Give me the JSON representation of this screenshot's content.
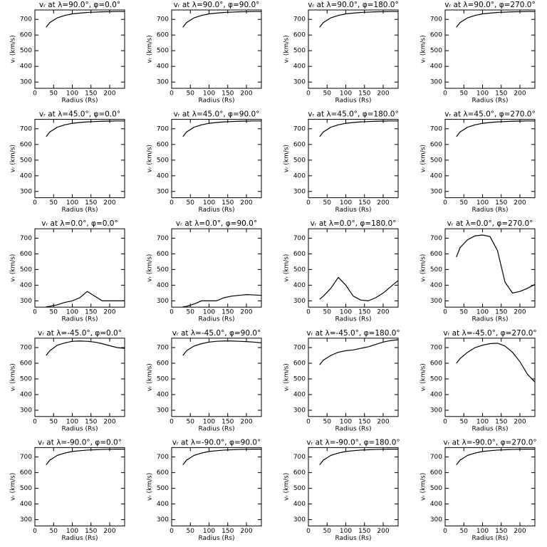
{
  "chart_data": [
    {
      "type": "line",
      "title": "vᵣ at λ=90.0°, φ=0.0°",
      "xlabel": "Radius (Rs)",
      "ylabel": "vᵣ (km/s)",
      "x": [
        30,
        40,
        60,
        80,
        100,
        120,
        140,
        160,
        180,
        200,
        220,
        240
      ],
      "values": [
        650,
        680,
        710,
        725,
        735,
        740,
        744,
        746,
        748,
        749,
        750,
        750
      ],
      "xlim": [
        0,
        240
      ],
      "ylim": [
        260,
        760
      ],
      "xticks": [
        0,
        50,
        100,
        150,
        200
      ],
      "yticks": [
        300,
        400,
        500,
        600,
        700
      ],
      "color": "#000000"
    },
    {
      "type": "line",
      "title": "vᵣ at λ=90.0°, φ=90.0°",
      "xlabel": "Radius (Rs)",
      "ylabel": "vᵣ (km/s)",
      "x": [
        30,
        40,
        60,
        80,
        100,
        120,
        140,
        160,
        180,
        200,
        220,
        240
      ],
      "values": [
        650,
        680,
        710,
        725,
        735,
        740,
        744,
        746,
        748,
        749,
        750,
        750
      ],
      "xlim": [
        0,
        240
      ],
      "ylim": [
        260,
        760
      ],
      "xticks": [
        0,
        50,
        100,
        150,
        200
      ],
      "yticks": [
        300,
        400,
        500,
        600,
        700
      ],
      "color": "#000000"
    },
    {
      "type": "line",
      "title": "vᵣ at λ=90.0°, φ=180.0°",
      "xlabel": "Radius (Rs)",
      "ylabel": "vᵣ (km/s)",
      "x": [
        30,
        40,
        60,
        80,
        100,
        120,
        140,
        160,
        180,
        200,
        220,
        240
      ],
      "values": [
        650,
        680,
        710,
        725,
        735,
        740,
        744,
        746,
        748,
        749,
        750,
        750
      ],
      "xlim": [
        0,
        240
      ],
      "ylim": [
        260,
        760
      ],
      "xticks": [
        0,
        50,
        100,
        150,
        200
      ],
      "yticks": [
        300,
        400,
        500,
        600,
        700
      ],
      "color": "#000000"
    },
    {
      "type": "line",
      "title": "vᵣ at λ=90.0°, φ=270.0°",
      "xlabel": "Radius (Rs)",
      "ylabel": "vᵣ (km/s)",
      "x": [
        30,
        40,
        60,
        80,
        100,
        120,
        140,
        160,
        180,
        200,
        220,
        240
      ],
      "values": [
        650,
        680,
        710,
        725,
        735,
        740,
        744,
        746,
        748,
        749,
        750,
        750
      ],
      "xlim": [
        0,
        240
      ],
      "ylim": [
        260,
        760
      ],
      "xticks": [
        0,
        50,
        100,
        150,
        200
      ],
      "yticks": [
        300,
        400,
        500,
        600,
        700
      ],
      "color": "#000000"
    },
    {
      "type": "line",
      "title": "vᵣ at λ=45.0°, φ=0.0°",
      "xlabel": "Radius (Rs)",
      "ylabel": "vᵣ (km/s)",
      "x": [
        30,
        40,
        60,
        80,
        100,
        120,
        140,
        160,
        180,
        200,
        220,
        240
      ],
      "values": [
        650,
        680,
        710,
        725,
        735,
        740,
        744,
        746,
        748,
        749,
        750,
        750
      ],
      "xlim": [
        0,
        240
      ],
      "ylim": [
        260,
        760
      ],
      "xticks": [
        0,
        50,
        100,
        150,
        200
      ],
      "yticks": [
        300,
        400,
        500,
        600,
        700
      ],
      "color": "#000000"
    },
    {
      "type": "line",
      "title": "vᵣ at λ=45.0°, φ=90.0°",
      "xlabel": "Radius (Rs)",
      "ylabel": "vᵣ (km/s)",
      "x": [
        30,
        40,
        60,
        80,
        100,
        120,
        140,
        160,
        180,
        200,
        220,
        240
      ],
      "values": [
        650,
        680,
        710,
        725,
        735,
        740,
        744,
        746,
        748,
        749,
        750,
        750
      ],
      "xlim": [
        0,
        240
      ],
      "ylim": [
        260,
        760
      ],
      "xticks": [
        0,
        50,
        100,
        150,
        200
      ],
      "yticks": [
        300,
        400,
        500,
        600,
        700
      ],
      "color": "#000000"
    },
    {
      "type": "line",
      "title": "vᵣ at λ=45.0°, φ=180.0°",
      "xlabel": "Radius (Rs)",
      "ylabel": "vᵣ (km/s)",
      "x": [
        30,
        40,
        60,
        80,
        100,
        120,
        140,
        160,
        180,
        200,
        220,
        240
      ],
      "values": [
        650,
        680,
        710,
        725,
        735,
        740,
        744,
        746,
        748,
        749,
        750,
        750
      ],
      "xlim": [
        0,
        240
      ],
      "ylim": [
        260,
        760
      ],
      "xticks": [
        0,
        50,
        100,
        150,
        200
      ],
      "yticks": [
        300,
        400,
        500,
        600,
        700
      ],
      "color": "#000000"
    },
    {
      "type": "line",
      "title": "vᵣ at λ=45.0°, φ=270.0°",
      "xlabel": "Radius (Rs)",
      "ylabel": "vᵣ (km/s)",
      "x": [
        30,
        40,
        60,
        80,
        100,
        120,
        140,
        160,
        180,
        200,
        220,
        240
      ],
      "values": [
        650,
        680,
        710,
        725,
        735,
        740,
        744,
        746,
        748,
        749,
        750,
        750
      ],
      "xlim": [
        0,
        240
      ],
      "ylim": [
        260,
        760
      ],
      "xticks": [
        0,
        50,
        100,
        150,
        200
      ],
      "yticks": [
        300,
        400,
        500,
        600,
        700
      ],
      "color": "#000000"
    },
    {
      "type": "line",
      "title": "vᵣ at λ=0.0°, φ=0.0°",
      "xlabel": "Radius (Rs)",
      "ylabel": "vᵣ (km/s)",
      "x": [
        30,
        40,
        60,
        80,
        100,
        120,
        140,
        160,
        180,
        200,
        220,
        240
      ],
      "values": [
        262,
        265,
        275,
        290,
        300,
        320,
        360,
        330,
        300,
        300,
        300,
        300
      ],
      "xlim": [
        0,
        240
      ],
      "ylim": [
        260,
        760
      ],
      "xticks": [
        0,
        50,
        100,
        150,
        200
      ],
      "yticks": [
        300,
        400,
        500,
        600,
        700
      ],
      "color": "#000000"
    },
    {
      "type": "line",
      "title": "vᵣ at λ=0.0°, φ=90.0°",
      "xlabel": "Radius (Rs)",
      "ylabel": "vᵣ (km/s)",
      "x": [
        30,
        40,
        60,
        80,
        100,
        120,
        140,
        160,
        180,
        200,
        220,
        240
      ],
      "values": [
        262,
        265,
        280,
        300,
        300,
        300,
        320,
        330,
        335,
        340,
        338,
        335
      ],
      "xlim": [
        0,
        240
      ],
      "ylim": [
        260,
        760
      ],
      "xticks": [
        0,
        50,
        100,
        150,
        200
      ],
      "yticks": [
        300,
        400,
        500,
        600,
        700
      ],
      "color": "#000000"
    },
    {
      "type": "line",
      "title": "vᵣ at λ=0.0°, φ=180.0°",
      "xlabel": "Radius (Rs)",
      "ylabel": "vᵣ (km/s)",
      "x": [
        30,
        40,
        60,
        80,
        100,
        120,
        140,
        160,
        180,
        200,
        220,
        240
      ],
      "values": [
        310,
        330,
        380,
        450,
        400,
        330,
        305,
        300,
        320,
        350,
        390,
        430
      ],
      "xlim": [
        0,
        240
      ],
      "ylim": [
        260,
        760
      ],
      "xticks": [
        0,
        50,
        100,
        150,
        200
      ],
      "yticks": [
        300,
        400,
        500,
        600,
        700
      ],
      "color": "#000000"
    },
    {
      "type": "line",
      "title": "vᵣ at λ=0.0°, φ=270.0°",
      "xlabel": "Radius (Rs)",
      "ylabel": "vᵣ (km/s)",
      "x": [
        30,
        40,
        60,
        80,
        100,
        120,
        140,
        160,
        180,
        200,
        220,
        240
      ],
      "values": [
        580,
        640,
        690,
        715,
        720,
        710,
        620,
        420,
        350,
        360,
        380,
        405
      ],
      "xlim": [
        0,
        240
      ],
      "ylim": [
        260,
        760
      ],
      "xticks": [
        0,
        50,
        100,
        150,
        200
      ],
      "yticks": [
        300,
        400,
        500,
        600,
        700
      ],
      "color": "#000000"
    },
    {
      "type": "line",
      "title": "vᵣ at λ=-45.0°, φ=0.0°",
      "xlabel": "Radius (Rs)",
      "ylabel": "vᵣ (km/s)",
      "x": [
        30,
        40,
        60,
        80,
        100,
        120,
        140,
        160,
        180,
        200,
        220,
        240
      ],
      "values": [
        650,
        680,
        715,
        730,
        740,
        742,
        740,
        735,
        725,
        712,
        700,
        695
      ],
      "xlim": [
        0,
        240
      ],
      "ylim": [
        260,
        760
      ],
      "xticks": [
        0,
        50,
        100,
        150,
        200
      ],
      "yticks": [
        300,
        400,
        500,
        600,
        700
      ],
      "color": "#000000"
    },
    {
      "type": "line",
      "title": "vᵣ at λ=-45.0°, φ=90.0°",
      "xlabel": "Radius (Rs)",
      "ylabel": "vᵣ (km/s)",
      "x": [
        30,
        40,
        60,
        80,
        100,
        120,
        140,
        160,
        180,
        200,
        220,
        240
      ],
      "values": [
        650,
        680,
        710,
        725,
        735,
        740,
        742,
        742,
        740,
        738,
        735,
        730
      ],
      "xlim": [
        0,
        240
      ],
      "ylim": [
        260,
        760
      ],
      "xticks": [
        0,
        50,
        100,
        150,
        200
      ],
      "yticks": [
        300,
        400,
        500,
        600,
        700
      ],
      "color": "#000000"
    },
    {
      "type": "line",
      "title": "vᵣ at λ=-45.0°, φ=180.0°",
      "xlabel": "Radius (Rs)",
      "ylabel": "vᵣ (km/s)",
      "x": [
        30,
        40,
        60,
        80,
        100,
        120,
        140,
        160,
        180,
        200,
        220,
        240
      ],
      "values": [
        590,
        620,
        650,
        670,
        680,
        685,
        695,
        705,
        720,
        735,
        745,
        750
      ],
      "xlim": [
        0,
        240
      ],
      "ylim": [
        260,
        760
      ],
      "xticks": [
        0,
        50,
        100,
        150,
        200
      ],
      "yticks": [
        300,
        400,
        500,
        600,
        700
      ],
      "color": "#000000"
    },
    {
      "type": "line",
      "title": "vᵣ at λ=-45.0°, φ=270.0°",
      "xlabel": "Radius (Rs)",
      "ylabel": "vᵣ (km/s)",
      "x": [
        30,
        40,
        60,
        80,
        100,
        120,
        140,
        160,
        180,
        200,
        220,
        240
      ],
      "values": [
        600,
        630,
        670,
        700,
        715,
        725,
        728,
        710,
        670,
        610,
        530,
        480
      ],
      "xlim": [
        0,
        240
      ],
      "ylim": [
        260,
        760
      ],
      "xticks": [
        0,
        50,
        100,
        150,
        200
      ],
      "yticks": [
        300,
        400,
        500,
        600,
        700
      ],
      "color": "#000000"
    },
    {
      "type": "line",
      "title": "vᵣ at λ=-90.0°, φ=0.0°",
      "xlabel": "Radius (Rs)",
      "ylabel": "vᵣ (km/s)",
      "x": [
        30,
        40,
        60,
        80,
        100,
        120,
        140,
        160,
        180,
        200,
        220,
        240
      ],
      "values": [
        650,
        680,
        710,
        725,
        735,
        740,
        744,
        746,
        748,
        749,
        750,
        750
      ],
      "xlim": [
        0,
        240
      ],
      "ylim": [
        260,
        760
      ],
      "xticks": [
        0,
        50,
        100,
        150,
        200
      ],
      "yticks": [
        300,
        400,
        500,
        600,
        700
      ],
      "color": "#000000"
    },
    {
      "type": "line",
      "title": "vᵣ at λ=-90.0°, φ=90.0°",
      "xlabel": "Radius (Rs)",
      "ylabel": "vᵣ (km/s)",
      "x": [
        30,
        40,
        60,
        80,
        100,
        120,
        140,
        160,
        180,
        200,
        220,
        240
      ],
      "values": [
        650,
        680,
        710,
        725,
        735,
        740,
        744,
        746,
        748,
        749,
        750,
        750
      ],
      "xlim": [
        0,
        240
      ],
      "ylim": [
        260,
        760
      ],
      "xticks": [
        0,
        50,
        100,
        150,
        200
      ],
      "yticks": [
        300,
        400,
        500,
        600,
        700
      ],
      "color": "#000000"
    },
    {
      "type": "line",
      "title": "vᵣ at λ=-90.0°, φ=180.0°",
      "xlabel": "Radius (Rs)",
      "ylabel": "vᵣ (km/s)",
      "x": [
        30,
        40,
        60,
        80,
        100,
        120,
        140,
        160,
        180,
        200,
        220,
        240
      ],
      "values": [
        650,
        680,
        710,
        725,
        735,
        740,
        744,
        746,
        748,
        749,
        750,
        750
      ],
      "xlim": [
        0,
        240
      ],
      "ylim": [
        260,
        760
      ],
      "xticks": [
        0,
        50,
        100,
        150,
        200
      ],
      "yticks": [
        300,
        400,
        500,
        600,
        700
      ],
      "color": "#000000"
    },
    {
      "type": "line",
      "title": "vᵣ at λ=-90.0°, φ=270.0°",
      "xlabel": "Radius (Rs)",
      "ylabel": "vᵣ (km/s)",
      "x": [
        30,
        40,
        60,
        80,
        100,
        120,
        140,
        160,
        180,
        200,
        220,
        240
      ],
      "values": [
        650,
        680,
        710,
        725,
        735,
        740,
        744,
        746,
        748,
        749,
        750,
        750
      ],
      "xlim": [
        0,
        240
      ],
      "ylim": [
        260,
        760
      ],
      "xticks": [
        0,
        50,
        100,
        150,
        200
      ],
      "yticks": [
        300,
        400,
        500,
        600,
        700
      ],
      "color": "#000000"
    }
  ]
}
